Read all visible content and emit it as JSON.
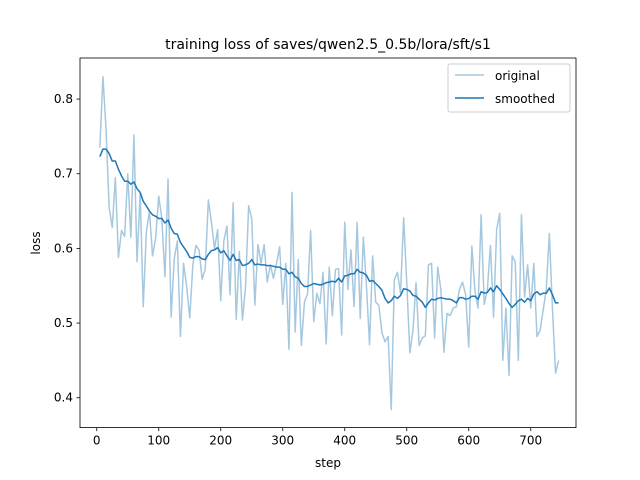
{
  "chart_data": {
    "type": "line",
    "title": "training loss of saves/qwen2.5_0.5b/lora/sft/s1",
    "xlabel": "step",
    "ylabel": "loss",
    "xlim": [
      -27,
      773
    ],
    "ylim": [
      0.36,
      0.855
    ],
    "xticks": [
      0,
      100,
      200,
      300,
      400,
      500,
      600,
      700
    ],
    "yticks": [
      0.4,
      0.5,
      0.6,
      0.7,
      0.8
    ],
    "legend_position": "top-right",
    "grid": false,
    "series": [
      {
        "name": "original",
        "color": "#a6c8df",
        "x": [
          5,
          10,
          15,
          20,
          25,
          30,
          35,
          40,
          45,
          50,
          55,
          60,
          65,
          70,
          75,
          80,
          85,
          90,
          95,
          100,
          105,
          110,
          115,
          120,
          125,
          130,
          135,
          140,
          145,
          150,
          155,
          160,
          165,
          170,
          175,
          180,
          185,
          190,
          195,
          200,
          205,
          210,
          215,
          220,
          225,
          230,
          235,
          240,
          245,
          250,
          255,
          260,
          265,
          270,
          275,
          280,
          285,
          290,
          295,
          300,
          305,
          310,
          315,
          320,
          325,
          330,
          335,
          340,
          345,
          350,
          355,
          360,
          365,
          370,
          375,
          380,
          385,
          390,
          395,
          400,
          405,
          410,
          415,
          420,
          425,
          430,
          435,
          440,
          445,
          450,
          455,
          460,
          465,
          470,
          475,
          480,
          485,
          490,
          495,
          500,
          505,
          510,
          515,
          520,
          525,
          530,
          535,
          540,
          545,
          550,
          555,
          560,
          565,
          570,
          575,
          580,
          585,
          590,
          595,
          600,
          605,
          610,
          615,
          620,
          625,
          630,
          635,
          640,
          645,
          650,
          655,
          660,
          665,
          670,
          675,
          680,
          685,
          690,
          695,
          700,
          705,
          710,
          715,
          720,
          725,
          730,
          735,
          740,
          745
        ],
        "values": [
          0.735,
          0.83,
          0.76,
          0.655,
          0.628,
          0.695,
          0.588,
          0.624,
          0.616,
          0.7,
          0.615,
          0.752,
          0.582,
          0.674,
          0.522,
          0.622,
          0.65,
          0.59,
          0.614,
          0.67,
          0.64,
          0.562,
          0.693,
          0.508,
          0.586,
          0.61,
          0.482,
          0.58,
          0.549,
          0.507,
          0.578,
          0.604,
          0.598,
          0.559,
          0.572,
          0.665,
          0.635,
          0.6,
          0.625,
          0.53,
          0.61,
          0.63,
          0.538,
          0.661,
          0.505,
          0.596,
          0.504,
          0.548,
          0.657,
          0.64,
          0.524,
          0.605,
          0.58,
          0.605,
          0.555,
          0.578,
          0.56,
          0.58,
          0.602,
          0.525,
          0.58,
          0.465,
          0.675,
          0.488,
          0.585,
          0.47,
          0.528,
          0.539,
          0.624,
          0.502,
          0.54,
          0.526,
          0.568,
          0.472,
          0.575,
          0.51,
          0.572,
          0.573,
          0.484,
          0.635,
          0.545,
          0.598,
          0.522,
          0.635,
          0.506,
          0.615,
          0.55,
          0.471,
          0.59,
          0.528,
          0.524,
          0.487,
          0.475,
          0.482,
          0.384,
          0.558,
          0.568,
          0.54,
          0.641,
          0.555,
          0.46,
          0.49,
          0.554,
          0.47,
          0.48,
          0.483,
          0.578,
          0.58,
          0.48,
          0.575,
          0.545,
          0.461,
          0.513,
          0.51,
          0.52,
          0.522,
          0.545,
          0.555,
          0.538,
          0.468,
          0.603,
          0.543,
          0.52,
          0.645,
          0.525,
          0.545,
          0.604,
          0.508,
          0.625,
          0.647,
          0.45,
          0.52,
          0.43,
          0.59,
          0.582,
          0.45,
          0.645,
          0.535,
          0.578,
          0.52,
          0.58,
          0.482,
          0.49,
          0.517,
          0.545,
          0.62,
          0.52,
          0.433,
          0.45
        ]
      },
      {
        "name": "smoothed",
        "color": "#1f77b4",
        "x": [
          5,
          10,
          15,
          20,
          25,
          30,
          35,
          40,
          45,
          50,
          55,
          60,
          65,
          70,
          75,
          80,
          85,
          90,
          95,
          100,
          105,
          110,
          115,
          120,
          125,
          130,
          135,
          140,
          145,
          150,
          155,
          160,
          165,
          170,
          175,
          180,
          185,
          190,
          195,
          200,
          205,
          210,
          215,
          220,
          225,
          230,
          235,
          240,
          245,
          250,
          255,
          260,
          265,
          270,
          275,
          280,
          285,
          290,
          295,
          300,
          305,
          310,
          315,
          320,
          325,
          330,
          335,
          340,
          345,
          350,
          355,
          360,
          365,
          370,
          375,
          380,
          385,
          390,
          395,
          400,
          405,
          410,
          415,
          420,
          425,
          430,
          435,
          440,
          445,
          450,
          455,
          460,
          465,
          470,
          475,
          480,
          485,
          490,
          495,
          500,
          505,
          510,
          515,
          520,
          525,
          530,
          535,
          540,
          545,
          550,
          555,
          560,
          565,
          570,
          575,
          580,
          585,
          590,
          595,
          600,
          605,
          610,
          615,
          620,
          625,
          630,
          635,
          640,
          645,
          650,
          655,
          660,
          665,
          670,
          675,
          680,
          685,
          690,
          695,
          700,
          705,
          710,
          715,
          720,
          725,
          730,
          735,
          740,
          745
        ],
        "values": [
          0.723,
          0.733,
          0.733,
          0.727,
          0.717,
          0.717,
          0.706,
          0.697,
          0.69,
          0.69,
          0.686,
          0.689,
          0.68,
          0.675,
          0.663,
          0.657,
          0.65,
          0.645,
          0.643,
          0.64,
          0.64,
          0.634,
          0.638,
          0.627,
          0.62,
          0.619,
          0.608,
          0.602,
          0.596,
          0.588,
          0.587,
          0.589,
          0.589,
          0.586,
          0.585,
          0.592,
          0.597,
          0.598,
          0.601,
          0.594,
          0.597,
          0.59,
          0.584,
          0.592,
          0.584,
          0.585,
          0.577,
          0.578,
          0.58,
          0.585,
          0.578,
          0.579,
          0.578,
          0.578,
          0.577,
          0.577,
          0.576,
          0.575,
          0.575,
          0.572,
          0.572,
          0.566,
          0.568,
          0.562,
          0.56,
          0.553,
          0.549,
          0.549,
          0.551,
          0.553,
          0.552,
          0.551,
          0.552,
          0.554,
          0.555,
          0.556,
          0.555,
          0.56,
          0.555,
          0.563,
          0.564,
          0.566,
          0.566,
          0.572,
          0.568,
          0.567,
          0.564,
          0.556,
          0.557,
          0.553,
          0.549,
          0.544,
          0.533,
          0.527,
          0.53,
          0.536,
          0.533,
          0.537,
          0.546,
          0.545,
          0.543,
          0.537,
          0.536,
          0.532,
          0.528,
          0.521,
          0.527,
          0.532,
          0.531,
          0.533,
          0.534,
          0.533,
          0.532,
          0.532,
          0.53,
          0.527,
          0.534,
          0.534,
          0.532,
          0.533,
          0.536,
          0.536,
          0.532,
          0.542,
          0.54,
          0.541,
          0.547,
          0.542,
          0.55,
          0.545,
          0.539,
          0.533,
          0.526,
          0.521,
          0.525,
          0.53,
          0.532,
          0.528,
          0.533,
          0.53,
          0.539,
          0.542,
          0.538,
          0.54,
          0.54,
          0.547,
          0.538,
          0.527,
          0.527
        ]
      }
    ]
  }
}
